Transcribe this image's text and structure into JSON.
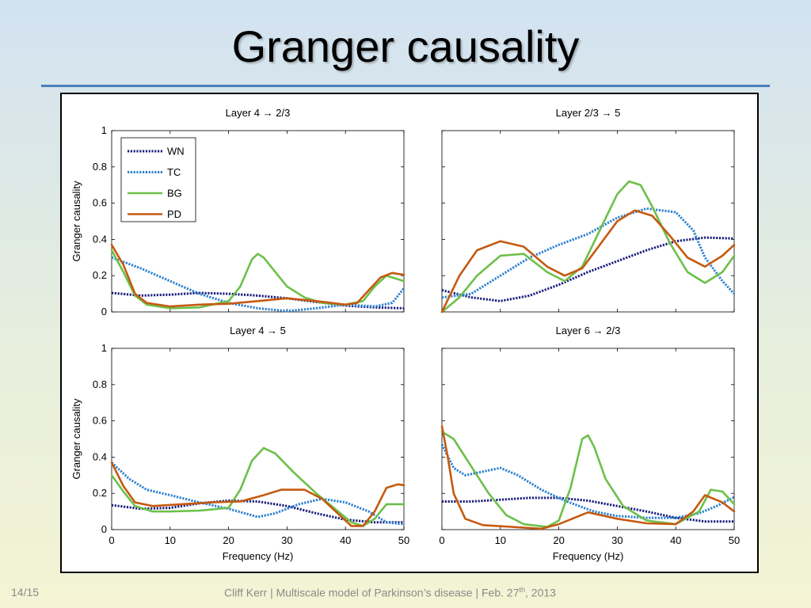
{
  "slide": {
    "title": "Granger causality",
    "page_number": "14/15",
    "footer_prefix": "Cliff Kerr | Multiscale model of Parkinson’s disease | Feb. 27",
    "footer_superscript": "th",
    "footer_suffix": ", 2013"
  },
  "colors": {
    "WN": "#1b1e7c",
    "TC": "#2a7fd0",
    "BG": "#6cc04a",
    "PD": "#c55a11"
  },
  "chart_data": [
    {
      "type": "line",
      "title": "Layer 4 → 2/3",
      "xlabel": "",
      "ylabel": "Granger causality",
      "xlim": [
        0,
        50
      ],
      "ylim": [
        0,
        1
      ],
      "xticks": [],
      "yticks": [
        "0",
        "0.2",
        "0.4",
        "0.6",
        "0.8",
        "1"
      ],
      "legend": {
        "placement": "top-left",
        "entries": [
          "WN",
          "TC",
          "BG",
          "PD"
        ]
      },
      "series": [
        {
          "name": "WN",
          "style": "dotted",
          "points": [
            [
              0,
              0.105
            ],
            [
              5,
              0.09
            ],
            [
              10,
              0.095
            ],
            [
              15,
              0.105
            ],
            [
              20,
              0.1
            ],
            [
              25,
              0.09
            ],
            [
              30,
              0.075
            ],
            [
              35,
              0.055
            ],
            [
              40,
              0.035
            ],
            [
              45,
              0.025
            ],
            [
              50,
              0.02
            ]
          ]
        },
        {
          "name": "TC",
          "style": "dotted",
          "points": [
            [
              0,
              0.3
            ],
            [
              5,
              0.24
            ],
            [
              10,
              0.17
            ],
            [
              15,
              0.1
            ],
            [
              20,
              0.05
            ],
            [
              25,
              0.02
            ],
            [
              30,
              0.005
            ],
            [
              35,
              0.02
            ],
            [
              40,
              0.04
            ],
            [
              45,
              0.03
            ],
            [
              48,
              0.05
            ],
            [
              50,
              0.13
            ]
          ]
        },
        {
          "name": "BG",
          "style": "solid",
          "points": [
            [
              0,
              0.34
            ],
            [
              2,
              0.22
            ],
            [
              4,
              0.09
            ],
            [
              6,
              0.04
            ],
            [
              10,
              0.02
            ],
            [
              15,
              0.025
            ],
            [
              20,
              0.06
            ],
            [
              22,
              0.14
            ],
            [
              24,
              0.29
            ],
            [
              25,
              0.32
            ],
            [
              26,
              0.3
            ],
            [
              28,
              0.22
            ],
            [
              30,
              0.14
            ],
            [
              33,
              0.08
            ],
            [
              36,
              0.05
            ],
            [
              40,
              0.04
            ],
            [
              43,
              0.06
            ],
            [
              45,
              0.14
            ],
            [
              47,
              0.2
            ],
            [
              50,
              0.17
            ]
          ]
        },
        {
          "name": "PD",
          "style": "solid",
          "points": [
            [
              0,
              0.37
            ],
            [
              2,
              0.26
            ],
            [
              4,
              0.1
            ],
            [
              6,
              0.05
            ],
            [
              10,
              0.03
            ],
            [
              15,
              0.04
            ],
            [
              20,
              0.045
            ],
            [
              25,
              0.06
            ],
            [
              30,
              0.075
            ],
            [
              35,
              0.06
            ],
            [
              40,
              0.04
            ],
            [
              42,
              0.05
            ],
            [
              44,
              0.12
            ],
            [
              46,
              0.19
            ],
            [
              48,
              0.215
            ],
            [
              50,
              0.205
            ]
          ]
        }
      ]
    },
    {
      "type": "line",
      "title": "Layer 2/3 → 5",
      "xlabel": "",
      "ylabel": "",
      "xlim": [
        0,
        50
      ],
      "ylim": [
        0,
        1
      ],
      "xticks": [],
      "yticks": [],
      "series": [
        {
          "name": "WN",
          "style": "dotted",
          "points": [
            [
              0,
              0.12
            ],
            [
              5,
              0.08
            ],
            [
              10,
              0.06
            ],
            [
              15,
              0.09
            ],
            [
              20,
              0.15
            ],
            [
              25,
              0.22
            ],
            [
              30,
              0.28
            ],
            [
              35,
              0.34
            ],
            [
              40,
              0.39
            ],
            [
              45,
              0.41
            ],
            [
              50,
              0.405
            ]
          ]
        },
        {
          "name": "TC",
          "style": "dotted",
          "points": [
            [
              0,
              0.08
            ],
            [
              5,
              0.1
            ],
            [
              10,
              0.2
            ],
            [
              15,
              0.3
            ],
            [
              20,
              0.37
            ],
            [
              25,
              0.43
            ],
            [
              30,
              0.52
            ],
            [
              35,
              0.57
            ],
            [
              40,
              0.55
            ],
            [
              43,
              0.45
            ],
            [
              45,
              0.3
            ],
            [
              48,
              0.17
            ],
            [
              50,
              0.1
            ]
          ]
        },
        {
          "name": "BG",
          "style": "solid",
          "points": [
            [
              0,
              0.0
            ],
            [
              3,
              0.08
            ],
            [
              6,
              0.2
            ],
            [
              10,
              0.31
            ],
            [
              14,
              0.32
            ],
            [
              18,
              0.22
            ],
            [
              21,
              0.17
            ],
            [
              24,
              0.25
            ],
            [
              27,
              0.45
            ],
            [
              30,
              0.65
            ],
            [
              32,
              0.72
            ],
            [
              34,
              0.7
            ],
            [
              36,
              0.58
            ],
            [
              39,
              0.38
            ],
            [
              42,
              0.22
            ],
            [
              45,
              0.16
            ],
            [
              48,
              0.22
            ],
            [
              50,
              0.31
            ]
          ]
        },
        {
          "name": "PD",
          "style": "solid",
          "points": [
            [
              0,
              0.0
            ],
            [
              3,
              0.2
            ],
            [
              6,
              0.34
            ],
            [
              10,
              0.39
            ],
            [
              14,
              0.36
            ],
            [
              18,
              0.25
            ],
            [
              21,
              0.2
            ],
            [
              24,
              0.24
            ],
            [
              27,
              0.37
            ],
            [
              30,
              0.5
            ],
            [
              33,
              0.56
            ],
            [
              36,
              0.53
            ],
            [
              39,
              0.42
            ],
            [
              42,
              0.3
            ],
            [
              45,
              0.25
            ],
            [
              48,
              0.31
            ],
            [
              50,
              0.37
            ]
          ]
        }
      ]
    },
    {
      "type": "line",
      "title": "Layer 4 → 5",
      "xlabel": "Frequency (Hz)",
      "ylabel": "Granger causality",
      "xlim": [
        0,
        50
      ],
      "ylim": [
        0,
        1
      ],
      "xticks": [
        "0",
        "10",
        "20",
        "30",
        "40",
        "50"
      ],
      "yticks": [
        "0",
        "0.2",
        "0.4",
        "0.6",
        "0.8",
        "1"
      ],
      "series": [
        {
          "name": "WN",
          "style": "dotted",
          "points": [
            [
              0,
              0.135
            ],
            [
              5,
              0.115
            ],
            [
              10,
              0.12
            ],
            [
              15,
              0.145
            ],
            [
              20,
              0.16
            ],
            [
              25,
              0.155
            ],
            [
              30,
              0.13
            ],
            [
              35,
              0.09
            ],
            [
              40,
              0.055
            ],
            [
              45,
              0.04
            ],
            [
              50,
              0.04
            ]
          ]
        },
        {
          "name": "TC",
          "style": "dotted",
          "points": [
            [
              0,
              0.37
            ],
            [
              3,
              0.28
            ],
            [
              6,
              0.22
            ],
            [
              10,
              0.19
            ],
            [
              15,
              0.15
            ],
            [
              20,
              0.115
            ],
            [
              25,
              0.07
            ],
            [
              28,
              0.09
            ],
            [
              32,
              0.14
            ],
            [
              36,
              0.17
            ],
            [
              40,
              0.15
            ],
            [
              44,
              0.1
            ],
            [
              47,
              0.04
            ],
            [
              50,
              0.03
            ]
          ]
        },
        {
          "name": "BG",
          "style": "solid",
          "points": [
            [
              0,
              0.3
            ],
            [
              2,
              0.21
            ],
            [
              4,
              0.13
            ],
            [
              7,
              0.1
            ],
            [
              10,
              0.1
            ],
            [
              15,
              0.105
            ],
            [
              20,
              0.12
            ],
            [
              22,
              0.22
            ],
            [
              24,
              0.38
            ],
            [
              26,
              0.45
            ],
            [
              28,
              0.42
            ],
            [
              31,
              0.32
            ],
            [
              35,
              0.2
            ],
            [
              38,
              0.12
            ],
            [
              41,
              0.04
            ],
            [
              43,
              0.02
            ],
            [
              45,
              0.06
            ],
            [
              47,
              0.14
            ],
            [
              50,
              0.14
            ]
          ]
        },
        {
          "name": "PD",
          "style": "solid",
          "points": [
            [
              0,
              0.37
            ],
            [
              2,
              0.24
            ],
            [
              4,
              0.15
            ],
            [
              7,
              0.13
            ],
            [
              12,
              0.14
            ],
            [
              17,
              0.15
            ],
            [
              22,
              0.155
            ],
            [
              26,
              0.19
            ],
            [
              29,
              0.22
            ],
            [
              33,
              0.22
            ],
            [
              36,
              0.17
            ],
            [
              39,
              0.08
            ],
            [
              41,
              0.02
            ],
            [
              43,
              0.02
            ],
            [
              45,
              0.1
            ],
            [
              47,
              0.23
            ],
            [
              49,
              0.25
            ],
            [
              50,
              0.245
            ]
          ]
        }
      ]
    },
    {
      "type": "line",
      "title": "Layer 6 → 2/3",
      "xlabel": "Frequency (Hz)",
      "ylabel": "",
      "xlim": [
        0,
        50
      ],
      "ylim": [
        0,
        1
      ],
      "xticks": [
        "0",
        "10",
        "20",
        "30",
        "40",
        "50"
      ],
      "yticks": [],
      "series": [
        {
          "name": "WN",
          "style": "dotted",
          "points": [
            [
              0,
              0.155
            ],
            [
              5,
              0.155
            ],
            [
              10,
              0.165
            ],
            [
              15,
              0.175
            ],
            [
              20,
              0.175
            ],
            [
              25,
              0.16
            ],
            [
              30,
              0.13
            ],
            [
              35,
              0.1
            ],
            [
              40,
              0.065
            ],
            [
              45,
              0.045
            ],
            [
              50,
              0.045
            ]
          ]
        },
        {
          "name": "TC",
          "style": "dotted",
          "points": [
            [
              0,
              0.47
            ],
            [
              2,
              0.34
            ],
            [
              4,
              0.3
            ],
            [
              7,
              0.32
            ],
            [
              10,
              0.34
            ],
            [
              13,
              0.3
            ],
            [
              17,
              0.22
            ],
            [
              21,
              0.16
            ],
            [
              26,
              0.1
            ],
            [
              30,
              0.075
            ],
            [
              35,
              0.065
            ],
            [
              40,
              0.065
            ],
            [
              44,
              0.09
            ],
            [
              47,
              0.13
            ],
            [
              50,
              0.18
            ]
          ]
        },
        {
          "name": "BG",
          "style": "solid",
          "points": [
            [
              0,
              0.54
            ],
            [
              2,
              0.5
            ],
            [
              5,
              0.35
            ],
            [
              8,
              0.2
            ],
            [
              11,
              0.08
            ],
            [
              14,
              0.03
            ],
            [
              18,
              0.015
            ],
            [
              20,
              0.05
            ],
            [
              22,
              0.23
            ],
            [
              24,
              0.5
            ],
            [
              25,
              0.52
            ],
            [
              26,
              0.46
            ],
            [
              28,
              0.28
            ],
            [
              31,
              0.13
            ],
            [
              35,
              0.05
            ],
            [
              40,
              0.03
            ],
            [
              44,
              0.1
            ],
            [
              46,
              0.22
            ],
            [
              48,
              0.21
            ],
            [
              50,
              0.14
            ]
          ]
        },
        {
          "name": "PD",
          "style": "solid",
          "points": [
            [
              0,
              0.57
            ],
            [
              1,
              0.4
            ],
            [
              2,
              0.2
            ],
            [
              4,
              0.06
            ],
            [
              7,
              0.025
            ],
            [
              12,
              0.015
            ],
            [
              17,
              0.005
            ],
            [
              20,
              0.03
            ],
            [
              25,
              0.095
            ],
            [
              30,
              0.06
            ],
            [
              35,
              0.035
            ],
            [
              40,
              0.03
            ],
            [
              43,
              0.1
            ],
            [
              45,
              0.19
            ],
            [
              48,
              0.15
            ],
            [
              50,
              0.1
            ]
          ]
        }
      ]
    }
  ]
}
